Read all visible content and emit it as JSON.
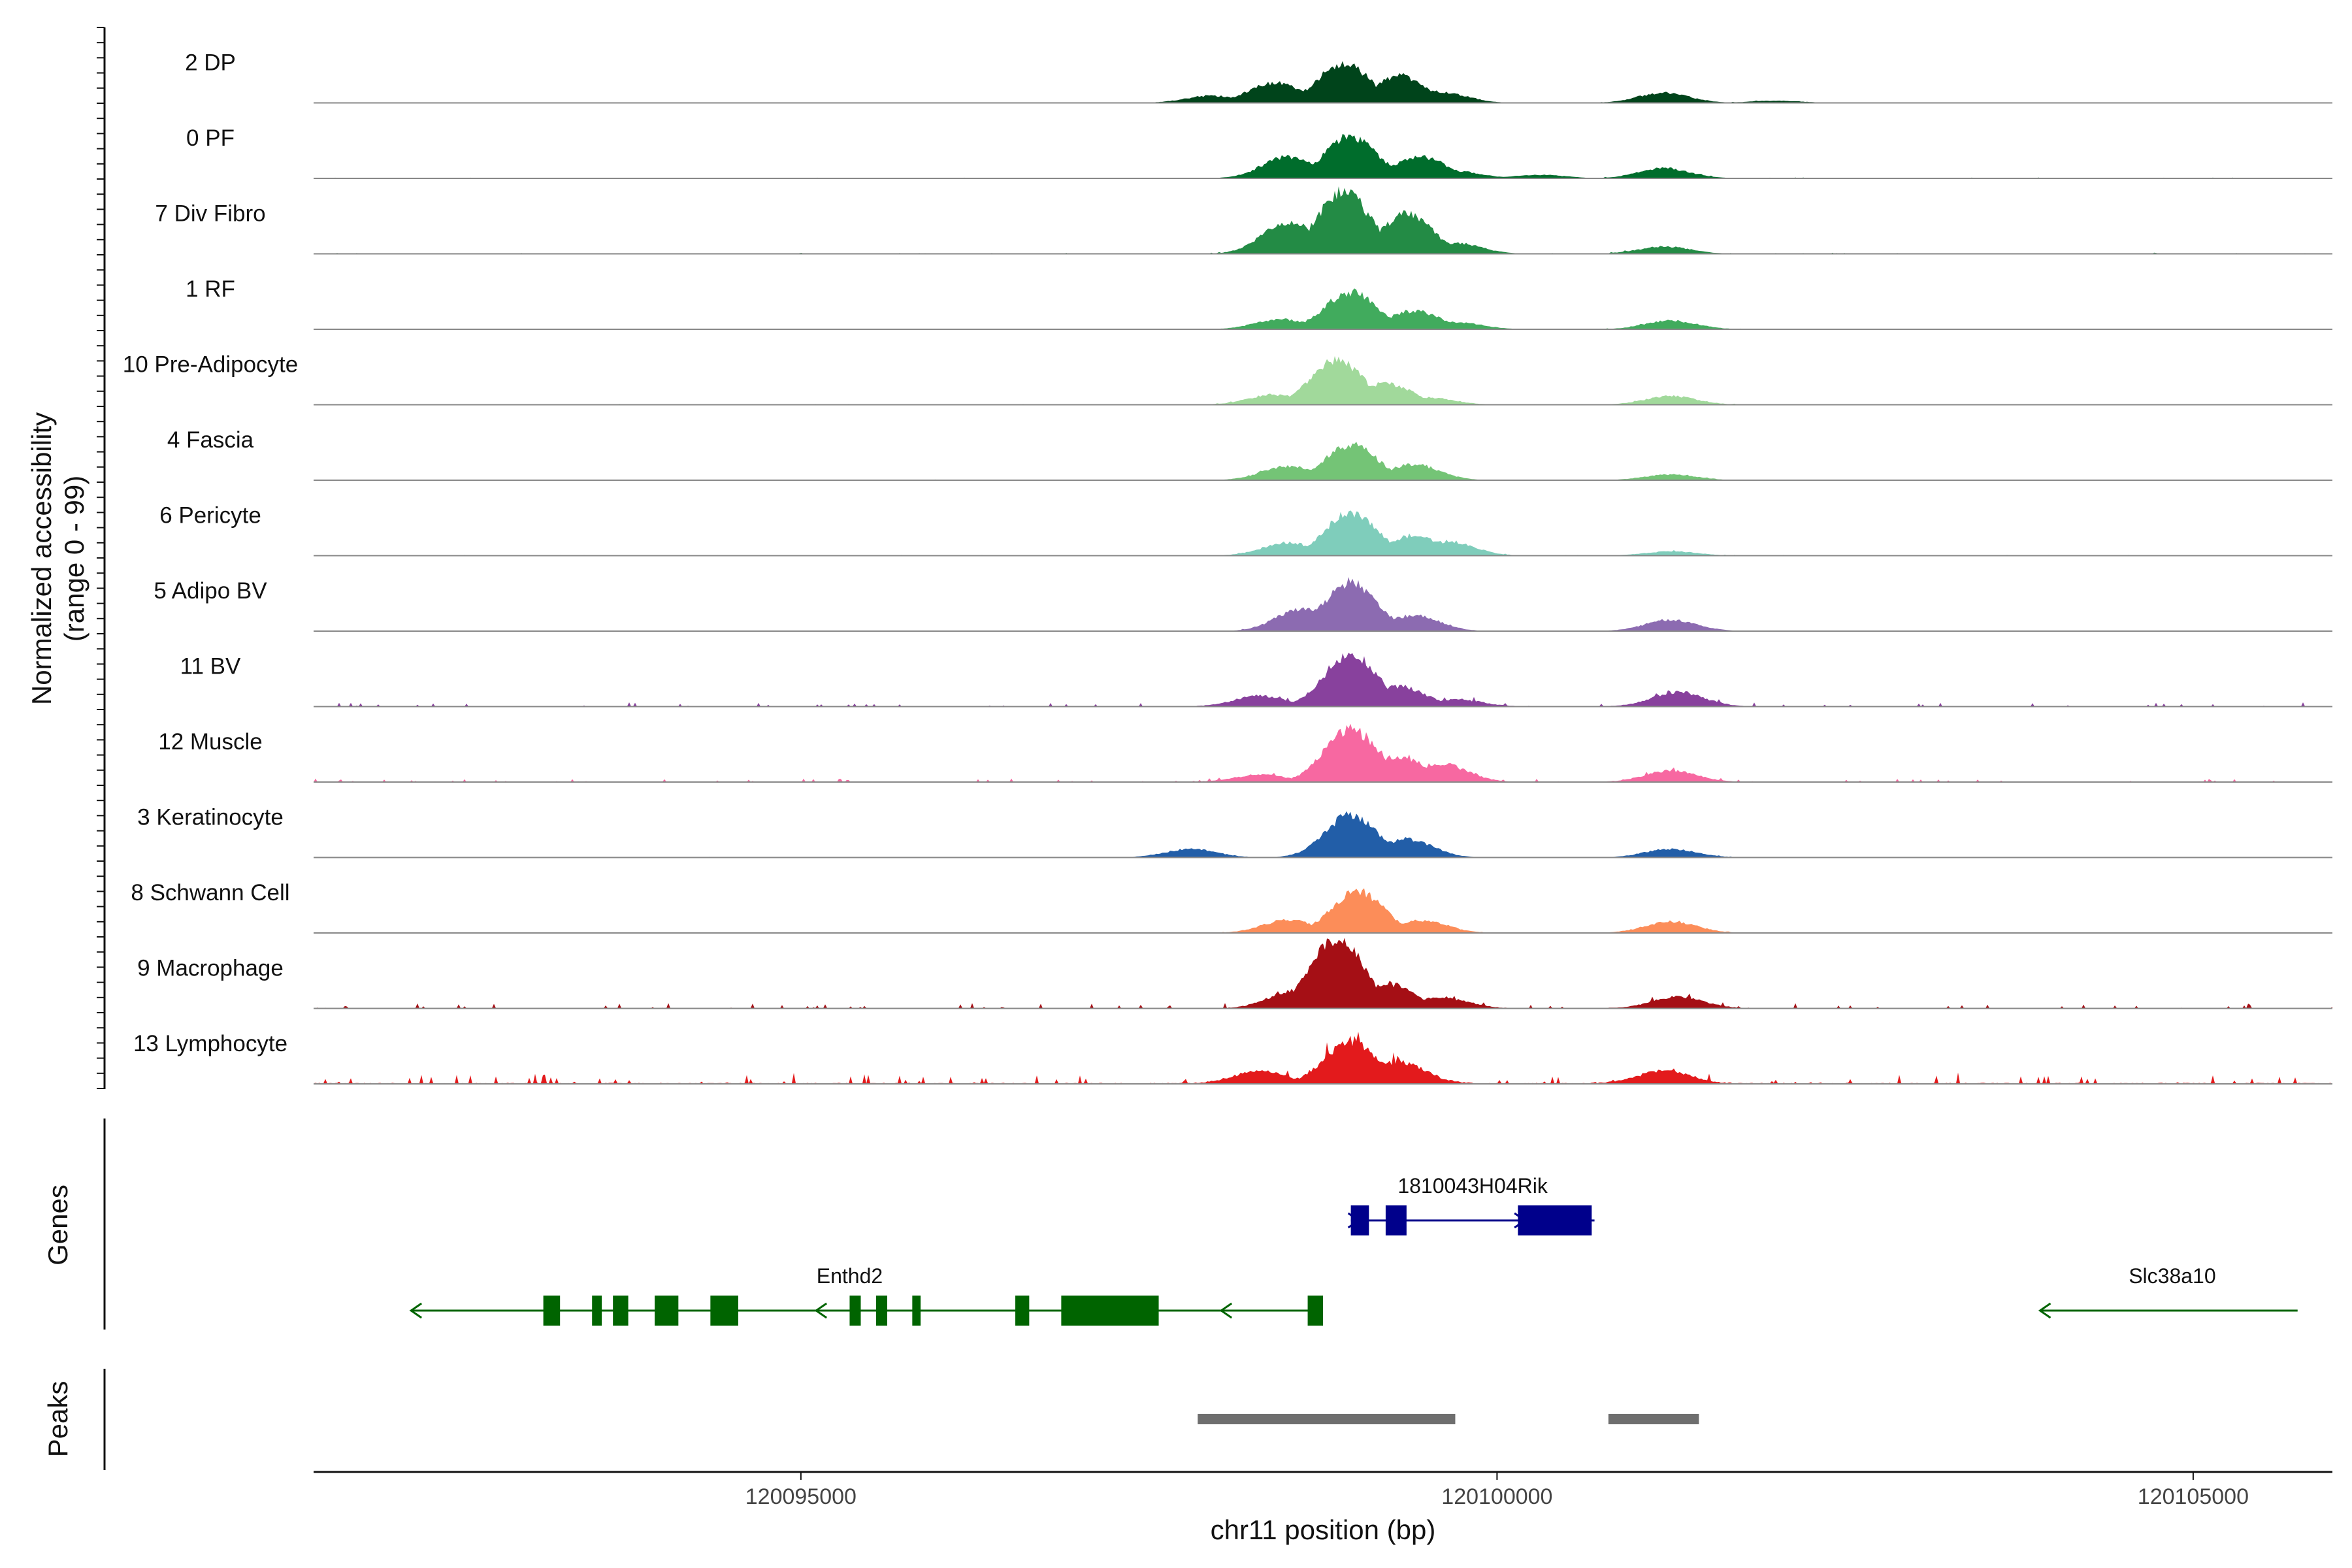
{
  "chart_data": {
    "type": "area",
    "ylabel": "Normalized accessibility",
    "ylabel_range": "(range 0 - 99)",
    "xlabel": "chr11 position (bp)",
    "xlim": [
      120091500,
      120106000
    ],
    "ylim": [
      0,
      99
    ],
    "x_ticks": [
      {
        "value": 120095000,
        "label": "120095000"
      },
      {
        "value": 120100000,
        "label": "120100000"
      },
      {
        "value": 120105000,
        "label": "120105000"
      }
    ],
    "tracks": [
      {
        "name": "2 DP",
        "color": "#00441b",
        "main_peak": 55,
        "main_pos": 120098950,
        "peak2": 14,
        "bg": 0.15,
        "shape": [
          [
            120097950,
            10
          ],
          [
            120098400,
            28
          ],
          [
            120098900,
            55
          ],
          [
            120099300,
            38
          ],
          [
            120099600,
            15
          ],
          [
            120101200,
            14
          ],
          [
            120102000,
            3
          ]
        ]
      },
      {
        "name": "0 PF",
        "color": "#006d2c",
        "main_peak": 58,
        "main_pos": 120098950,
        "peak2": 14,
        "bg": 0.2,
        "shape": [
          [
            120098500,
            30
          ],
          [
            120098950,
            58
          ],
          [
            120099450,
            30
          ],
          [
            120099700,
            10
          ],
          [
            120100300,
            5
          ],
          [
            120101200,
            14
          ]
        ]
      },
      {
        "name": "7 Div Fibro",
        "color": "#238b45",
        "main_peak": 87,
        "main_pos": 120098900,
        "peak2": 10,
        "bg": 0.25,
        "shape": [
          [
            120098500,
            45
          ],
          [
            120098900,
            87
          ],
          [
            120099350,
            55
          ],
          [
            120099700,
            15
          ],
          [
            120101200,
            10
          ]
        ]
      },
      {
        "name": "1 RF",
        "color": "#41ab5d",
        "main_peak": 52,
        "main_pos": 120098950,
        "peak2": 12,
        "bg": 0.15,
        "shape": [
          [
            120098450,
            14
          ],
          [
            120098950,
            52
          ],
          [
            120099400,
            26
          ],
          [
            120099700,
            10
          ],
          [
            120101250,
            12
          ]
        ]
      },
      {
        "name": "10 Pre-Adipocyte",
        "color": "#a1d99b",
        "main_peak": 62,
        "main_pos": 120098850,
        "peak2": 12,
        "bg": 0.2,
        "shape": [
          [
            120098400,
            14
          ],
          [
            120098850,
            62
          ],
          [
            120099200,
            30
          ],
          [
            120099500,
            10
          ],
          [
            120101250,
            12
          ]
        ]
      },
      {
        "name": "4 Fascia",
        "color": "#74c476",
        "main_peak": 50,
        "main_pos": 120098950,
        "peak2": 8,
        "bg": 0.15,
        "shape": [
          [
            120098500,
            20
          ],
          [
            120098950,
            50
          ],
          [
            120099400,
            22
          ],
          [
            120101250,
            8
          ]
        ]
      },
      {
        "name": "6 Pericyte",
        "color": "#7fcdbb",
        "main_peak": 60,
        "main_pos": 120098950,
        "peak2": 6,
        "bg": 0.2,
        "shape": [
          [
            120098500,
            18
          ],
          [
            120098950,
            60
          ],
          [
            120099400,
            28
          ],
          [
            120099650,
            20
          ],
          [
            120101250,
            6
          ]
        ]
      },
      {
        "name": "5 Adipo BV",
        "color": "#8c6bb1",
        "main_peak": 68,
        "main_pos": 120098950,
        "peak2": 16,
        "bg": 0.15,
        "shape": [
          [
            120098600,
            32
          ],
          [
            120098950,
            68
          ],
          [
            120099400,
            22
          ],
          [
            120101250,
            16
          ]
        ]
      },
      {
        "name": "11 BV",
        "color": "#88419d",
        "main_peak": 75,
        "main_pos": 120098950,
        "peak2": 20,
        "bg": 1,
        "shape": [
          [
            120098300,
            15
          ],
          [
            120098950,
            75
          ],
          [
            120099300,
            28
          ],
          [
            120099700,
            10
          ],
          [
            120101300,
            20
          ]
        ]
      },
      {
        "name": "12 Muscle",
        "color": "#f768a1",
        "main_peak": 75,
        "main_pos": 120098950,
        "peak2": 16,
        "bg": 0.8,
        "shape": [
          [
            120098300,
            10
          ],
          [
            120098950,
            75
          ],
          [
            120099300,
            35
          ],
          [
            120099600,
            25
          ],
          [
            120101250,
            16
          ]
        ]
      },
      {
        "name": "3 Keratinocyte",
        "color": "#225ea8",
        "main_peak": 60,
        "main_pos": 120098950,
        "peak2": 12,
        "bg": 0.15,
        "shape": [
          [
            120097800,
            12
          ],
          [
            120098950,
            60
          ],
          [
            120099350,
            26
          ],
          [
            120101250,
            12
          ]
        ]
      },
      {
        "name": "8 Schwann Cell",
        "color": "#fc8d59",
        "main_peak": 58,
        "main_pos": 120099000,
        "peak2": 16,
        "bg": 0.15,
        "shape": [
          [
            120098500,
            18
          ],
          [
            120099000,
            58
          ],
          [
            120099450,
            18
          ],
          [
            120101250,
            16
          ]
        ]
      },
      {
        "name": "9 Macrophage",
        "color": "#a50f15",
        "main_peak": 99,
        "main_pos": 120098850,
        "peak2": 16,
        "bg": 1.2,
        "shape": [
          [
            120098550,
            25
          ],
          [
            120098850,
            99
          ],
          [
            120099200,
            35
          ],
          [
            120099600,
            15
          ],
          [
            120101300,
            16
          ]
        ]
      },
      {
        "name": "13 Lymphocyte",
        "color": "#e31a1c",
        "main_peak": 60,
        "main_pos": 120098950,
        "peak2": 18,
        "bg": 2.5,
        "shape": [
          [
            120098300,
            18
          ],
          [
            120098950,
            60
          ],
          [
            120099300,
            30
          ],
          [
            120101200,
            18
          ]
        ]
      }
    ],
    "genes": [
      {
        "name": "1810043H04Rik",
        "strand": "+",
        "start": 120098950,
        "end": 120100700,
        "color": "#00008b",
        "exons": [
          [
            120098950,
            120099080
          ],
          [
            120099200,
            120099350
          ],
          [
            120100150,
            120100680
          ]
        ],
        "row": 1
      },
      {
        "name": "Enthd2",
        "strand": "-",
        "start": 120092200,
        "end": 120098750,
        "color": "#006400",
        "exons": [
          [
            120093150,
            120093270
          ],
          [
            120093500,
            120093570
          ],
          [
            120093650,
            120093760
          ],
          [
            120093950,
            120094120
          ],
          [
            120094350,
            120094550
          ],
          [
            120095350,
            120095430
          ],
          [
            120095540,
            120095620
          ],
          [
            120095800,
            120095860
          ],
          [
            120096540,
            120096640
          ],
          [
            120096870,
            120097570
          ],
          [
            120098640,
            120098750
          ]
        ],
        "row": 2
      },
      {
        "name": "Slc38a10",
        "strand": "-",
        "start": 120103900,
        "end": 120105750,
        "color": "#006400",
        "exons": [],
        "row": 2
      }
    ],
    "peaks": [
      {
        "start": 120097850,
        "end": 120099700
      },
      {
        "start": 120100800,
        "end": 120101450
      }
    ],
    "panels": {
      "genes": "Genes",
      "peaks": "Peaks"
    }
  }
}
